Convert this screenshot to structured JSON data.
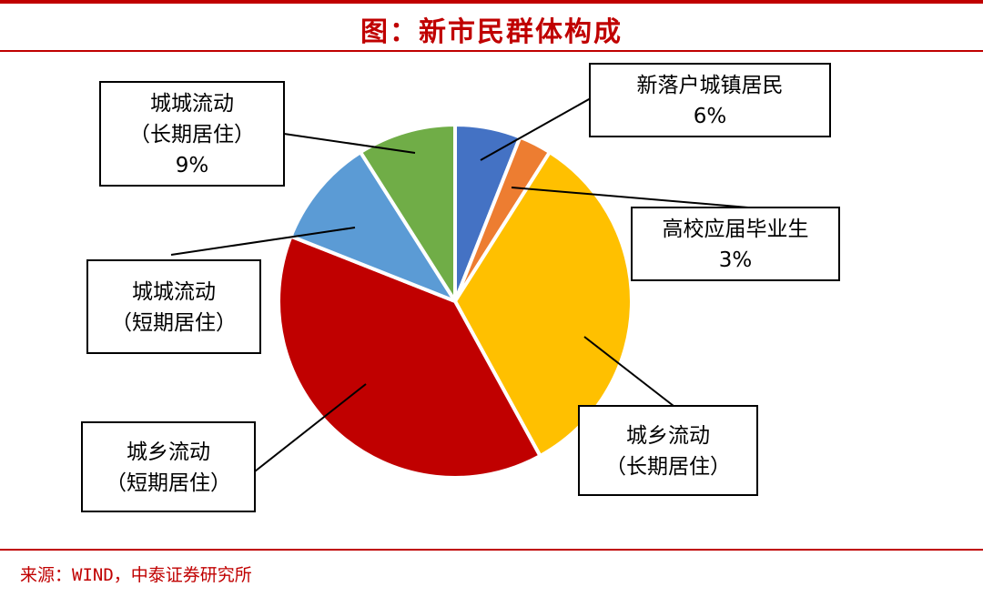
{
  "title": "图：新市民群体构成",
  "source": "来源：WIND，中泰证券研究所",
  "colors": {
    "accent": "#c00000"
  },
  "chart_data": {
    "type": "pie",
    "title": "图：新市民群体构成",
    "slices": [
      {
        "name_lines": [
          "新落户城镇居民"
        ],
        "value_label": "6%",
        "value": 6,
        "color": "#4472c4"
      },
      {
        "name_lines": [
          "高校应届毕业生"
        ],
        "value_label": "3%",
        "value": 3,
        "color": "#ed7d31"
      },
      {
        "name_lines": [
          "城乡流动",
          "（长期居住）"
        ],
        "value_label": "",
        "value": 33,
        "color": "#ffc000"
      },
      {
        "name_lines": [
          "城乡流动",
          "（短期居住）"
        ],
        "value_label": "",
        "value": 39,
        "color": "#c00000"
      },
      {
        "name_lines": [
          "城城流动",
          "（短期居住）"
        ],
        "value_label": "",
        "value": 10,
        "color": "#5b9bd5"
      },
      {
        "name_lines": [
          "城城流动",
          "（长期居住）"
        ],
        "value_label": "9%",
        "value": 9,
        "color": "#70ad47"
      }
    ]
  }
}
